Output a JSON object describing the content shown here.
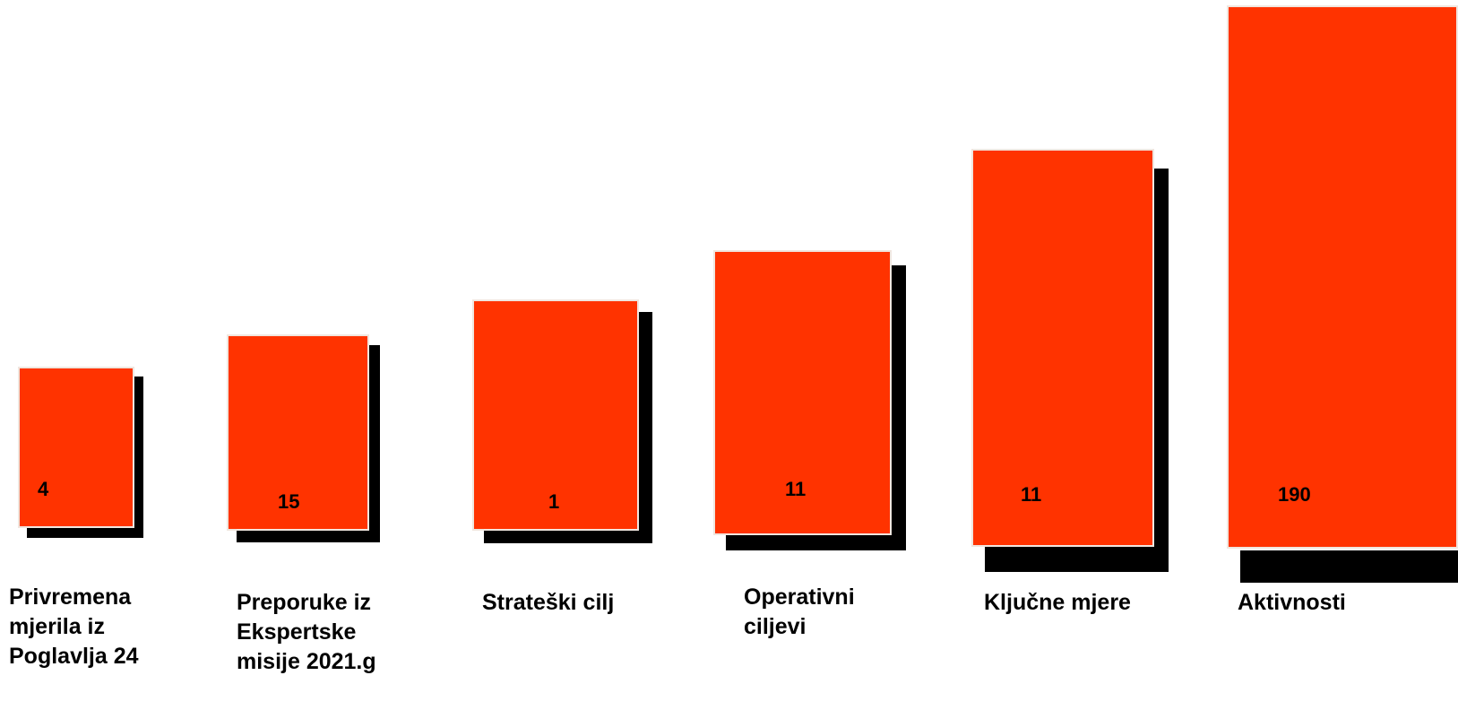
{
  "colors": {
    "block_fill": "#FF3300",
    "shadow": "#000000",
    "text": "#000000"
  },
  "steps": [
    {
      "count": "4",
      "label_lines": [
        "Privremena",
        "mjerila iz",
        "Poglavlja 24"
      ]
    },
    {
      "count": "15",
      "label_lines": [
        "Preporuke iz",
        "Ekspertske",
        "misije 2021.g"
      ]
    },
    {
      "count": "1",
      "label_lines": [
        "Strateški cilj"
      ]
    },
    {
      "count": "11",
      "label_lines": [
        "Operativni",
        "ciljevi"
      ]
    },
    {
      "count": "11",
      "label_lines": [
        "Ključne mjere"
      ]
    },
    {
      "count": "190",
      "label_lines": [
        "Aktivnosti"
      ]
    }
  ]
}
